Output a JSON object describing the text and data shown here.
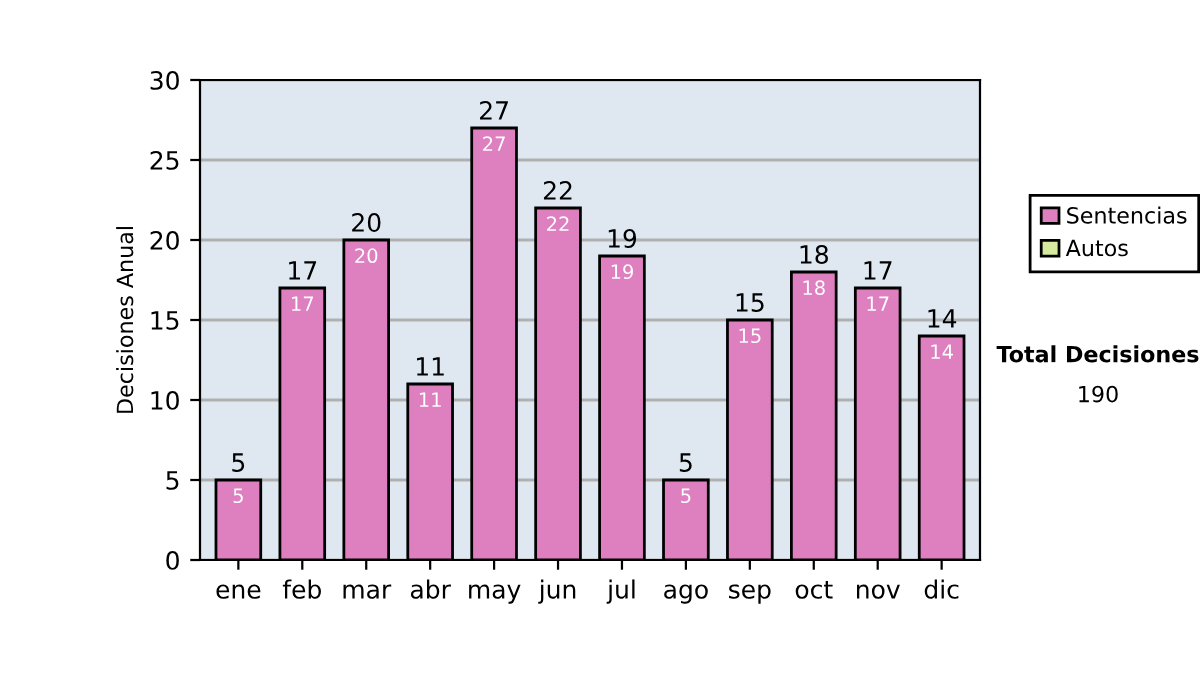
{
  "chart_data": {
    "type": "bar",
    "ylabel": "Decisiones Anual",
    "categories": [
      "ene",
      "feb",
      "mar",
      "abr",
      "may",
      "jun",
      "jul",
      "ago",
      "sep",
      "oct",
      "nov",
      "dic"
    ],
    "series": [
      {
        "name": "Sentencias",
        "color": "#de7fc0",
        "values": [
          5,
          17,
          20,
          11,
          27,
          22,
          19,
          5,
          15,
          18,
          17,
          14
        ],
        "value_labels": [
          "5",
          "17",
          "20",
          "11",
          "27",
          "22",
          "19",
          "5",
          "15",
          "18",
          "17",
          "14"
        ]
      },
      {
        "name": "Autos",
        "color": "#d6eba0",
        "values": [
          null,
          null,
          null,
          null,
          null,
          null,
          null,
          null,
          null,
          null,
          null,
          null
        ]
      }
    ],
    "stacked": true,
    "totals": [
      "5",
      "17",
      "20",
      "11",
      "27",
      "22",
      "19",
      "5",
      "15",
      "18",
      "17",
      "14"
    ],
    "ylim": [
      0,
      30
    ],
    "yticks": [
      0,
      5,
      10,
      15,
      20,
      25,
      30
    ],
    "grid": "y",
    "legend": "right",
    "annotations": [
      "Total Decisiones",
      "190"
    ]
  }
}
